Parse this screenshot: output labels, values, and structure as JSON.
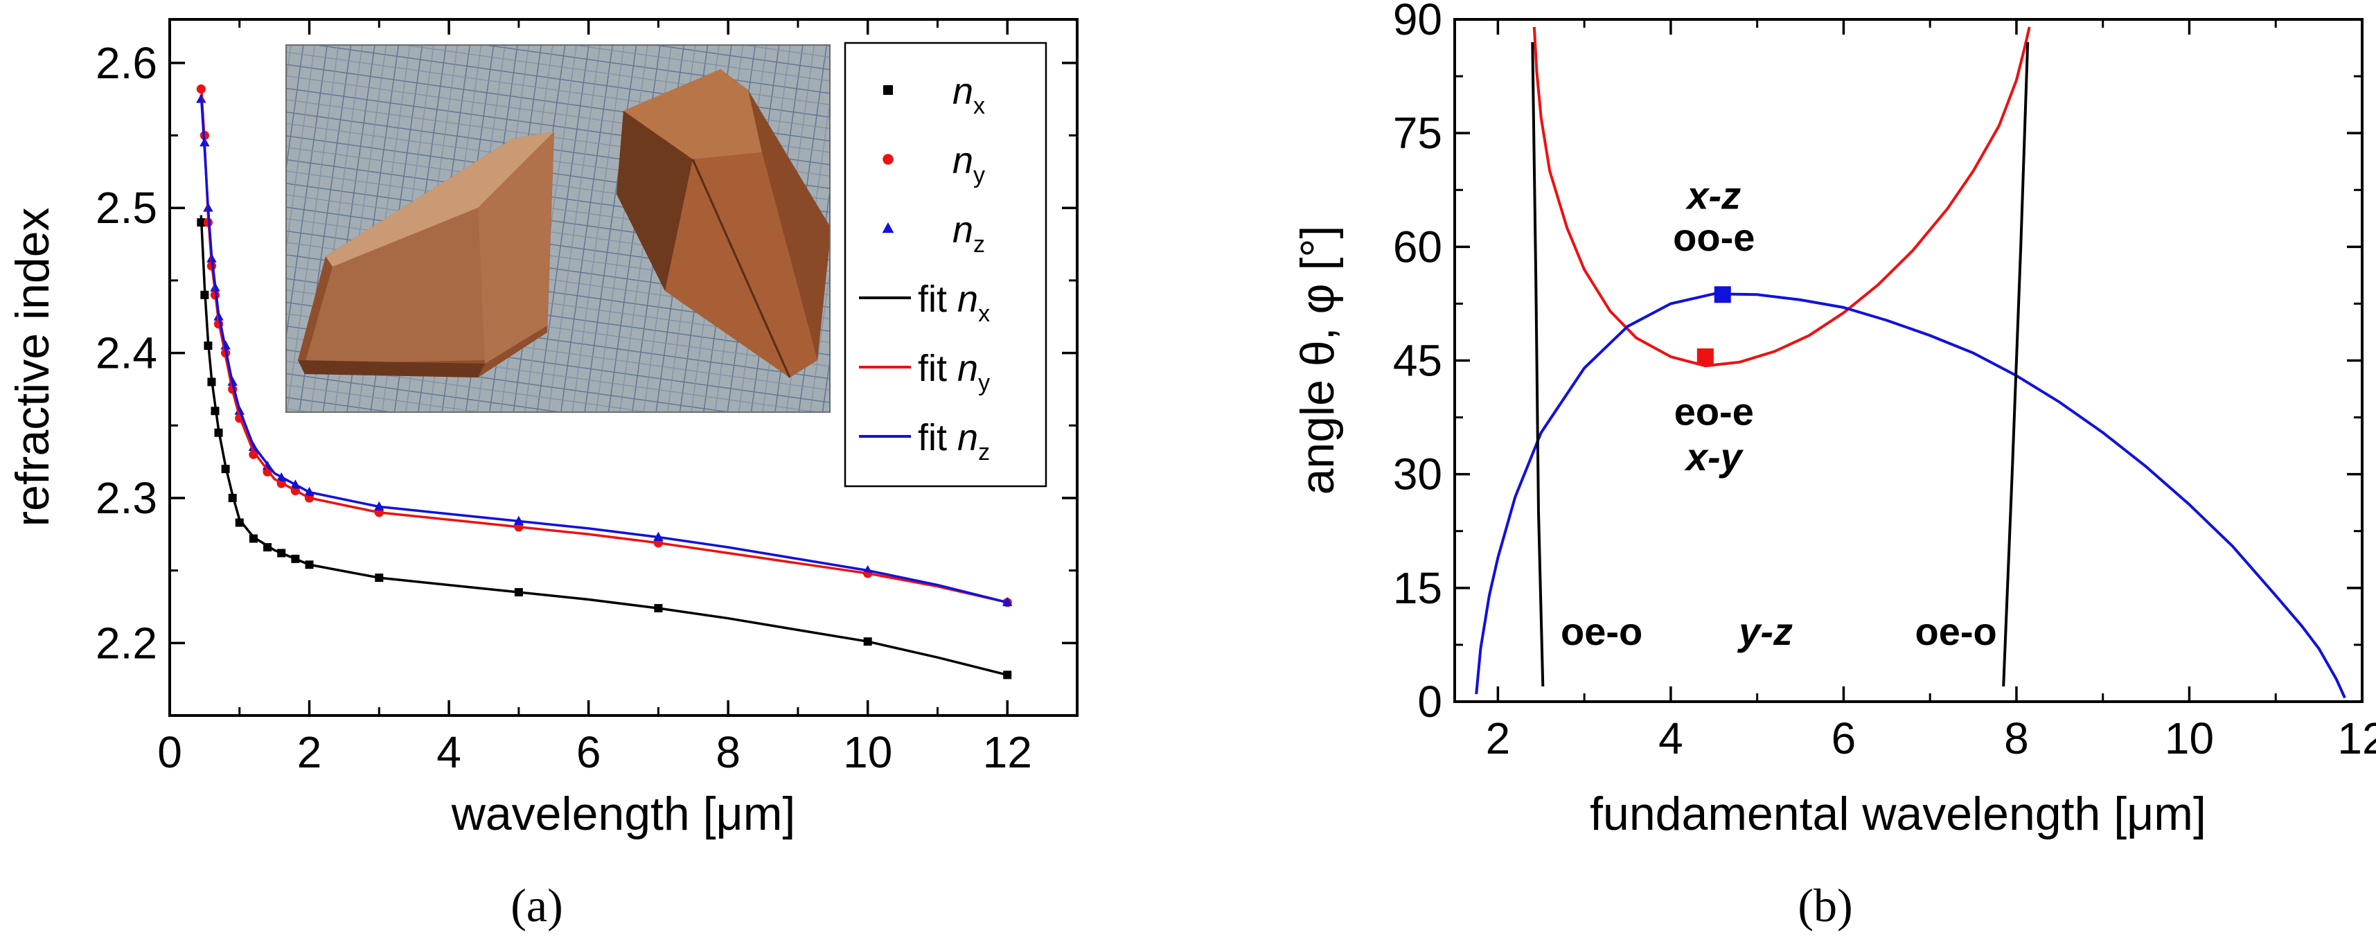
{
  "colors": {
    "nx": "#000000",
    "ny": "#ee1111",
    "nz": "#1111dd",
    "pm_eo_e": "#ee1111",
    "pm_oo_e": "#1111dd",
    "pm_oe_o": "#000000",
    "frame": "#000000",
    "photo_bg": "#9fb3c6",
    "photo_grid": "#5f7fa8",
    "crystal_dark": "#6e3a1e",
    "crystal_mid": "#a05a33",
    "crystal_light": "#c08a63"
  },
  "icons": {
    "photo": "crystal-photo-icon"
  },
  "chart_data": [
    {
      "id": "a",
      "type": "scatter",
      "caption": "(a)",
      "xlabel": "wavelength [μm]",
      "ylabel": "refractive index",
      "xlim": [
        0,
        13
      ],
      "ylim": [
        2.15,
        2.63
      ],
      "xticks": [
        0,
        2,
        4,
        6,
        8,
        10,
        12
      ],
      "yticks": [
        2.2,
        2.3,
        2.4,
        2.5,
        2.6
      ],
      "xtick_labels": [
        "0",
        "2",
        "4",
        "6",
        "8",
        "10",
        "12"
      ],
      "ytick_labels": [
        "2.2",
        "2.3",
        "2.4",
        "2.5",
        "2.6"
      ],
      "legend_position": "top-right",
      "inset": "photo of two crystal prisms on grid paper, top-left",
      "series": [
        {
          "name": "n_x",
          "legend_symbol": "n",
          "legend_sub": "x",
          "marker": "square",
          "color_key": "nx",
          "x": [
            0.45,
            0.5,
            0.55,
            0.6,
            0.65,
            0.7,
            0.8,
            0.9,
            1.0,
            1.2,
            1.4,
            1.6,
            1.8,
            2.0,
            3.0,
            5.0,
            7.0,
            10.0,
            12.0
          ],
          "y": [
            2.49,
            2.44,
            2.405,
            2.38,
            2.36,
            2.345,
            2.32,
            2.3,
            2.283,
            2.272,
            2.266,
            2.262,
            2.258,
            2.254,
            2.245,
            2.235,
            2.224,
            2.201,
            2.178
          ]
        },
        {
          "name": "n_y",
          "legend_symbol": "n",
          "legend_sub": "y",
          "marker": "circle",
          "color_key": "ny",
          "x": [
            0.45,
            0.5,
            0.55,
            0.6,
            0.65,
            0.7,
            0.8,
            0.9,
            1.0,
            1.2,
            1.4,
            1.6,
            1.8,
            2.0,
            3.0,
            5.0,
            7.0,
            10.0,
            12.0
          ],
          "y": [
            2.582,
            2.55,
            2.49,
            2.46,
            2.44,
            2.42,
            2.4,
            2.375,
            2.355,
            2.33,
            2.318,
            2.31,
            2.305,
            2.3,
            2.29,
            2.28,
            2.269,
            2.248,
            2.228
          ]
        },
        {
          "name": "n_z",
          "legend_symbol": "n",
          "legend_sub": "z",
          "marker": "triangle",
          "color_key": "nz",
          "x": [
            0.45,
            0.5,
            0.55,
            0.6,
            0.65,
            0.7,
            0.8,
            0.9,
            1.0,
            1.2,
            1.4,
            1.6,
            1.8,
            2.0,
            3.0,
            5.0,
            7.0,
            10.0,
            12.0
          ],
          "y": [
            2.575,
            2.545,
            2.5,
            2.465,
            2.445,
            2.425,
            2.405,
            2.38,
            2.36,
            2.335,
            2.322,
            2.314,
            2.309,
            2.304,
            2.294,
            2.284,
            2.273,
            2.25,
            2.228
          ]
        },
        {
          "name": "fit n_x",
          "legend_symbol": "n",
          "legend_sub": "x",
          "legend_prefix": "fit ",
          "line": true,
          "color_key": "nx",
          "x": [
            0.45,
            0.5,
            0.55,
            0.6,
            0.7,
            0.8,
            0.9,
            1.0,
            1.2,
            1.5,
            2.0,
            3.0,
            4.0,
            5.0,
            6.0,
            7.0,
            8.0,
            9.0,
            10.0,
            11.0,
            12.0
          ],
          "y": [
            2.495,
            2.445,
            2.408,
            2.382,
            2.347,
            2.322,
            2.302,
            2.285,
            2.273,
            2.264,
            2.254,
            2.245,
            2.24,
            2.235,
            2.23,
            2.224,
            2.217,
            2.209,
            2.201,
            2.19,
            2.178
          ]
        },
        {
          "name": "fit n_y",
          "legend_symbol": "n",
          "legend_sub": "y",
          "legend_prefix": "fit ",
          "line": true,
          "color_key": "ny",
          "x": [
            0.45,
            0.5,
            0.55,
            0.6,
            0.7,
            0.8,
            0.9,
            1.0,
            1.2,
            1.5,
            2.0,
            3.0,
            4.0,
            5.0,
            6.0,
            7.0,
            8.0,
            9.0,
            10.0,
            11.0,
            12.0
          ],
          "y": [
            2.585,
            2.545,
            2.495,
            2.462,
            2.422,
            2.398,
            2.374,
            2.356,
            2.332,
            2.313,
            2.3,
            2.29,
            2.285,
            2.28,
            2.275,
            2.269,
            2.262,
            2.255,
            2.248,
            2.239,
            2.228
          ]
        },
        {
          "name": "fit n_z",
          "legend_symbol": "n",
          "legend_sub": "z",
          "legend_prefix": "fit ",
          "line": true,
          "color_key": "nz",
          "x": [
            0.45,
            0.5,
            0.55,
            0.6,
            0.7,
            0.8,
            0.9,
            1.0,
            1.2,
            1.5,
            2.0,
            3.0,
            4.0,
            5.0,
            6.0,
            7.0,
            8.0,
            9.0,
            10.0,
            11.0,
            12.0
          ],
          "y": [
            2.578,
            2.54,
            2.5,
            2.467,
            2.427,
            2.403,
            2.379,
            2.361,
            2.336,
            2.317,
            2.304,
            2.294,
            2.289,
            2.284,
            2.279,
            2.273,
            2.266,
            2.258,
            2.25,
            2.24,
            2.228
          ]
        }
      ]
    },
    {
      "id": "b",
      "type": "line",
      "caption": "(b)",
      "xlabel": "fundamental wavelength [μm]",
      "ylabel": "angle θ, φ [°]",
      "xlim": [
        1.5,
        12
      ],
      "ylim": [
        0,
        90
      ],
      "xticks": [
        2,
        4,
        6,
        8,
        10,
        12
      ],
      "yticks": [
        0,
        15,
        30,
        45,
        60,
        75,
        90
      ],
      "xtick_labels": [
        "2",
        "4",
        "6",
        "8",
        "10",
        "12"
      ],
      "ytick_labels": [
        "0",
        "15",
        "30",
        "45",
        "60",
        "75",
        "90"
      ],
      "series": [
        {
          "name": "eo-e x-y",
          "color_key": "pm_eo_e",
          "x": [
            2.42,
            2.45,
            2.5,
            2.6,
            2.8,
            3.0,
            3.3,
            3.6,
            4.0,
            4.4,
            4.8,
            5.2,
            5.6,
            6.0,
            6.4,
            6.8,
            7.2,
            7.5,
            7.8,
            8.0,
            8.1,
            8.15
          ],
          "y": [
            89,
            83,
            77,
            70,
            62.5,
            57,
            51.5,
            48,
            45.5,
            44.3,
            44.8,
            46.2,
            48.3,
            51.3,
            55,
            59.5,
            65,
            70,
            76,
            82,
            86.5,
            89
          ]
        },
        {
          "name": "oo-e x-z",
          "color_key": "pm_oo_e",
          "x": [
            1.75,
            1.8,
            1.9,
            2.0,
            2.2,
            2.5,
            3.0,
            3.5,
            4.0,
            4.5,
            5.0,
            5.5,
            6.0,
            6.5,
            7.0,
            7.5,
            8.0,
            8.5,
            9.0,
            9.5,
            10.0,
            10.5,
            11.0,
            11.3,
            11.5,
            11.7,
            11.8
          ],
          "y": [
            1,
            7,
            14,
            19,
            27,
            35.5,
            44,
            49.5,
            52.5,
            53.8,
            53.7,
            53,
            52,
            50.3,
            48.3,
            46,
            43,
            39.5,
            35.5,
            31,
            26,
            20.5,
            14,
            10,
            7,
            3,
            0.5
          ]
        },
        {
          "name": "oe-o y-z left",
          "color_key": "pm_oe_o",
          "x": [
            2.4,
            2.44,
            2.47,
            2.52
          ],
          "y": [
            87,
            55,
            25,
            2
          ]
        },
        {
          "name": "oe-o y-z right",
          "color_key": "pm_oe_o",
          "x": [
            7.85,
            7.95,
            8.05,
            8.13
          ],
          "y": [
            2,
            30,
            60,
            87
          ]
        },
        {
          "name": "max eo-e",
          "marker": "square",
          "color_key": "pm_eo_e",
          "x": [
            4.4
          ],
          "y": [
            45.5
          ]
        },
        {
          "name": "max oo-e",
          "marker": "square",
          "color_key": "pm_oo_e",
          "x": [
            4.6
          ],
          "y": [
            53.7
          ]
        }
      ],
      "annotations": [
        {
          "text": "x-z",
          "style": "bold-italic",
          "color_key": "pm_oo_e",
          "at": [
            4.5,
            65
          ]
        },
        {
          "text": "oo-e",
          "style": "bold",
          "color_key": "pm_oo_e",
          "at": [
            4.5,
            59.5
          ]
        },
        {
          "text": "eo-e",
          "style": "bold",
          "color_key": "pm_eo_e",
          "at": [
            4.5,
            36.5
          ]
        },
        {
          "text": "x-y",
          "style": "bold-italic",
          "color_key": "pm_eo_e",
          "at": [
            4.5,
            30.5
          ]
        },
        {
          "text": "oe-o",
          "style": "bold",
          "color_key": "pm_oe_o",
          "at": [
            3.2,
            7.5
          ]
        },
        {
          "text": "y-z",
          "style": "bold-italic",
          "color_key": "pm_oe_o",
          "at": [
            5.1,
            7.5
          ]
        },
        {
          "text": "oe-o",
          "style": "bold",
          "color_key": "pm_oe_o",
          "at": [
            7.3,
            7.5
          ]
        }
      ]
    }
  ]
}
